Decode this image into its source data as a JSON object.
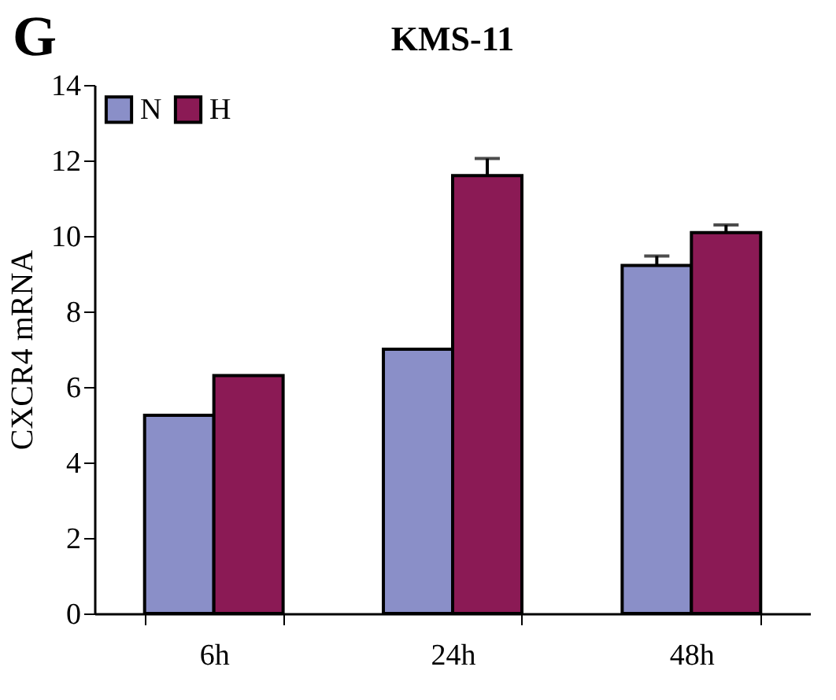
{
  "chart_data": {
    "type": "bar",
    "title": "KMS-11",
    "ylabel": "CXCR4 mRNA",
    "annotations": [
      "G"
    ],
    "categories": [
      "6h",
      "24h",
      "48h"
    ],
    "series": [
      {
        "name": "N",
        "color": "#8a8fc8",
        "values": [
          5.25,
          7.0,
          9.22
        ],
        "errors": [
          null,
          null,
          0.25
        ]
      },
      {
        "name": "H",
        "color": "#8b1a55",
        "values": [
          6.3,
          11.6,
          10.09
        ],
        "errors": [
          null,
          0.45,
          0.2
        ]
      }
    ],
    "ylim": [
      0,
      14
    ],
    "yticks": [
      0,
      2,
      4,
      6,
      8,
      10,
      12,
      14
    ],
    "grid": false,
    "legend": "top left"
  }
}
